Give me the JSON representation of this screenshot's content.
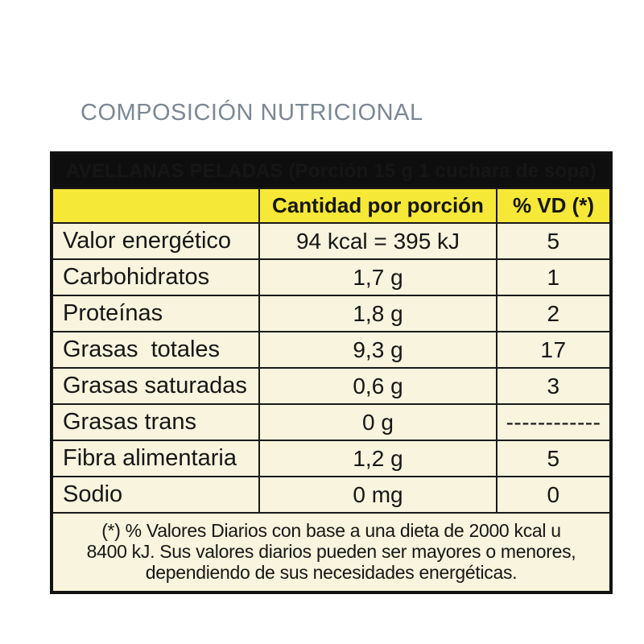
{
  "page": {
    "title": "COMPOSICIÓN NUTRICIONAL"
  },
  "colors": {
    "header_band_bg": "#0e0e0e",
    "header_band_text": "#ffffff",
    "column_header_yellow": "#f6e837",
    "row_cream": "#f8f4dd",
    "border_black": "#1a1a1a",
    "title_gray": "#7b8794"
  },
  "table": {
    "title": "AVELLANAS PELADAS (Porción 15 g 1 cuchara de sopa)",
    "columns": {
      "nutrient": "",
      "amount": "Cantidad por porción",
      "vd": "% VD (*)"
    },
    "rows": [
      {
        "label": "Valor energético",
        "amount": "94 kcal = 395 kJ",
        "vd": "5"
      },
      {
        "label": "Carbohidratos",
        "amount": "1,7 g",
        "vd": "1"
      },
      {
        "label": "Proteínas",
        "amount": "1,8 g",
        "vd": "2"
      },
      {
        "label": "Grasas  totales",
        "amount": "9,3 g",
        "vd": "17"
      },
      {
        "label": "Grasas saturadas",
        "amount": "0,6 g",
        "vd": "3"
      },
      {
        "label": "Grasas trans",
        "amount": "0 g",
        "vd": "------------"
      },
      {
        "label": "Fibra alimentaria",
        "amount": "1,2 g",
        "vd": "5"
      },
      {
        "label": "Sodio",
        "amount": "0 mg",
        "vd": "0"
      }
    ],
    "footnote_lines": [
      "(*) % Valores Diarios con base a una dieta de 2000 kcal u",
      "8400 kJ. Sus valores diarios pueden ser mayores o menores,",
      "dependiendo de sus necesidades energéticas."
    ]
  }
}
